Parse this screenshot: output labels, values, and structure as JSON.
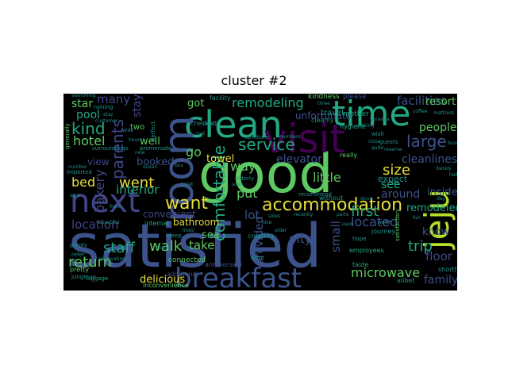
{
  "title": "cluster  #2",
  "palette": {
    "yellow": "#e6de3b",
    "green": "#5ec962",
    "teal": "#22a884",
    "blue": "#3b528b",
    "indigo": "#404688",
    "purple": "#440154",
    "cyan": "#21918c",
    "lime": "#b5de2b"
  },
  "words": {
    "satisfied": "satisfied",
    "good": "good",
    "clean": "clean",
    "visit": "visit",
    "time": "time",
    "room": "room",
    "breakfast": "breakfast",
    "jeju": "jeju",
    "next": "next",
    "accommodation": "accommodation",
    "comfortable": "comfortable",
    "location": "location",
    "service": "service",
    "parents": "parents",
    "hotel": "hotel",
    "kind": "kind",
    "want": "want",
    "went": "went",
    "remodeling": "remodeling",
    "large": "large",
    "size": "size",
    "facilities": "facilities",
    "cleanliness": "cleanliness",
    "located": "located",
    "first": "first",
    "trip": "trip",
    "return": "return",
    "staff": "staff",
    "walk": "walk",
    "microwave": "microwave",
    "bed": "bed",
    "bakery": "bakery",
    "interior": "interior",
    "pool": "pool",
    "star": "star",
    "many": "many",
    "stayed": "stayed",
    "go": "go",
    "way": "way",
    "little": "little",
    "elevator": "elevator",
    "people": "people",
    "resort": "resort",
    "inside": "inside",
    "know": "know",
    "floor": "floor",
    "family": "family",
    "remodeled": "remodeled",
    "see": "see",
    "around": "around",
    "expect": "expect",
    "put": "put",
    "lot": "lot",
    "pity": "pity",
    "small": "small",
    "provided": "provided",
    "take": "take",
    "delicious": "delicious",
    "bathroom": "bathroom",
    "sea": "sea",
    "towel": "towel",
    "well": "well",
    "booked": "booked",
    "view": "view",
    "convenient": "convenient",
    "got": "got",
    "unfortunate": "unfortunate",
    "travel": "travel",
    "hygiene": "hygiene",
    "kindness": "kindness",
    "please": "please",
    "mother": "mother",
    "really": "really",
    "cleanly": "cleanly",
    "slept": "slept",
    "anniversary": "anniversary",
    "connected": "connected",
    "additional": "additional",
    "inconvenience": "inconvenience",
    "pretty": "pretty",
    "plenty": "plenty",
    "refer": "refer",
    "jungmun": "jungmun",
    "imported": "imported",
    "luggage": "luggage",
    "internal": "internal",
    "sleep": "sleep",
    "employees": "employees",
    "taste": "taste",
    "shortly": "shortly",
    "alibet": "alibet",
    "satisfactory": "satisfactory",
    "journey": "journey",
    "recommend": "recommend",
    "without": "without",
    "facility": "facility",
    "raining": "raining",
    "two": "two",
    "promenade": "promenade",
    "swimming": "swimming",
    "generally": "generally",
    "surroundings": "surroundings",
    "checked": "checked",
    "perfect": "perfect",
    "stay": "stay",
    "wish": "wish",
    "hope": "hope",
    "guests": "guests",
    "reserve": "reserve",
    "quite": "quite",
    "cooking": "cooking",
    "mattress": "mattress",
    "three": "three",
    "close": "close",
    "veranda": "veranda",
    "coffee": "coffee",
    "parts": "parts",
    "used": "used",
    "recently": "recently",
    "elderly": "elderly",
    "numbers": "numbers",
    "furniture": "furniture",
    "creating": "creating",
    "doctor": "doctor",
    "lines": "lines",
    "beautiful": "beautiful",
    "reservation": "reservation",
    "spot": "spot",
    "number": "number",
    "wide": "wide",
    "hours": "hours",
    "ocean": "ocean",
    "soon": "soon",
    "nice": "nice",
    "older": "older",
    "sides": "sides",
    "since": "since",
    "bit": "bit",
    "worth": "worth",
    "fun": "fun",
    "hall": "hall",
    "liked": "liked",
    "bus": "bus",
    "toilet": "toilet",
    "cost": "cost",
    "new": "new",
    "customer": "customer",
    "barely": "barely",
    "busy": "busy",
    "day": "day",
    "front": "front"
  }
}
